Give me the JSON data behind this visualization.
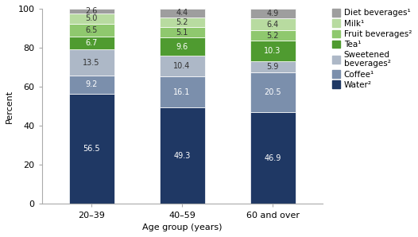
{
  "categories": [
    "20–39",
    "40–59",
    "60 and over"
  ],
  "series": [
    {
      "label": "Water²",
      "values": [
        56.5,
        49.3,
        46.9
      ],
      "color": "#1f3864",
      "text_color": "#ffffff"
    },
    {
      "label": "Coffee¹",
      "values": [
        9.2,
        16.1,
        20.5
      ],
      "color": "#7b8fac",
      "text_color": "#ffffff"
    },
    {
      "label": "Sweetened\nbeverages²",
      "values": [
        13.5,
        10.4,
        5.9
      ],
      "color": "#adb8c7",
      "text_color": "#333333"
    },
    {
      "label": "Tea¹",
      "values": [
        6.7,
        9.6,
        10.3
      ],
      "color": "#4f9b30",
      "text_color": "#ffffff"
    },
    {
      "label": "Fruit beverages²",
      "values": [
        6.5,
        5.1,
        5.2
      ],
      "color": "#8fc86e",
      "text_color": "#333333"
    },
    {
      "label": "Milk¹",
      "values": [
        5.0,
        5.2,
        6.4
      ],
      "color": "#b8dba0",
      "text_color": "#333333"
    },
    {
      "label": "Diet beverages¹",
      "values": [
        2.6,
        4.4,
        4.9
      ],
      "color": "#9e9e9e",
      "text_color": "#333333"
    }
  ],
  "ylabel": "Percent",
  "xlabel": "Age group (years)",
  "ylim": [
    0,
    100
  ],
  "yticks": [
    0,
    20,
    40,
    60,
    80,
    100
  ],
  "bar_width": 0.5,
  "fontsize_label": 7.0,
  "fontsize_axis": 8,
  "fontsize_legend": 7.5,
  "background_color": "#ffffff"
}
